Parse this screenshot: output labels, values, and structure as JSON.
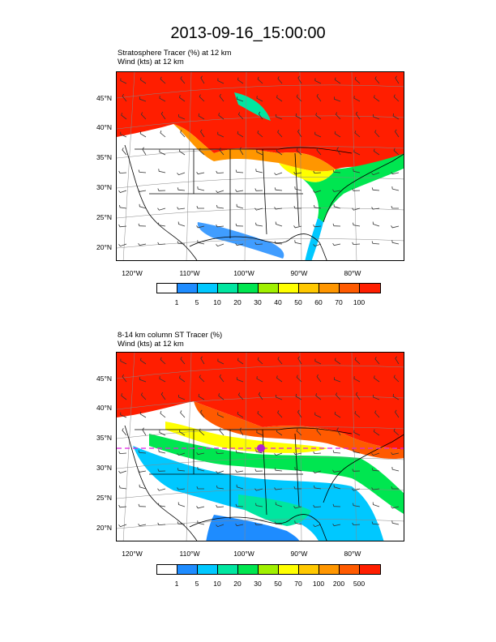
{
  "title": "2013-09-16_15:00:00",
  "panels": [
    {
      "line1": "Stratosphere Tracer   (%)     at   12 km",
      "line2": "Wind   (kts)     at   12 km",
      "lat_labels": [
        "45°N",
        "40°N",
        "35°N",
        "30°N",
        "25°N",
        "20°N"
      ],
      "lon_labels": [
        "120°W",
        "110°W",
        "100°W",
        "90°W",
        "80°W"
      ],
      "colorbar_labels": [
        "1",
        "5",
        "10",
        "20",
        "30",
        "40",
        "50",
        "60",
        "70",
        "100"
      ]
    },
    {
      "line1": "8-14 km column ST Tracer   (%)",
      "line2": "Wind   (kts)     at   12 km",
      "lat_labels": [
        "45°N",
        "40°N",
        "35°N",
        "30°N",
        "25°N",
        "20°N"
      ],
      "lon_labels": [
        "120°W",
        "110°W",
        "100°W",
        "90°W",
        "80°W"
      ],
      "colorbar_labels": [
        "1",
        "5",
        "10",
        "20",
        "30",
        "50",
        "70",
        "100",
        "200",
        "500"
      ]
    }
  ],
  "colors": [
    "#ffffff",
    "#1e8cff",
    "#00c8ff",
    "#00e6a0",
    "#00e650",
    "#a0f000",
    "#ffff00",
    "#ffc800",
    "#ff9600",
    "#ff5a00",
    "#ff1e00"
  ]
}
